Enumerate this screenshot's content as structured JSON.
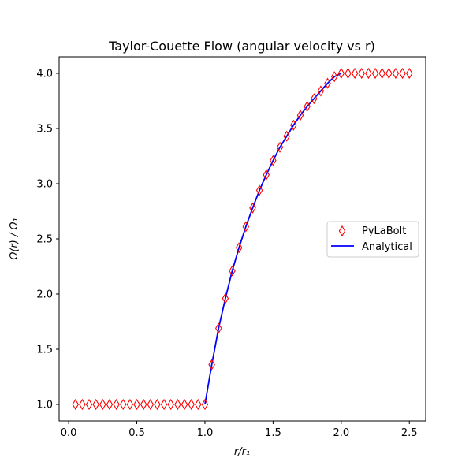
{
  "chart_data": {
    "type": "line",
    "title": "Taylor-Couette Flow (angular velocity vs r)",
    "xlabel": "r/r₁",
    "ylabel": "Ω(r) / Ω₁",
    "xlim": [
      -0.07,
      2.62
    ],
    "ylim": [
      0.85,
      4.15
    ],
    "xticks": [
      0.0,
      0.5,
      1.0,
      1.5,
      2.0,
      2.5
    ],
    "xtick_labels": [
      "0.0",
      "0.5",
      "1.0",
      "1.5",
      "2.0",
      "2.5"
    ],
    "yticks": [
      1.0,
      1.5,
      2.0,
      2.5,
      3.0,
      3.5,
      4.0
    ],
    "ytick_labels": [
      "1.0",
      "1.5",
      "2.0",
      "2.5",
      "3.0",
      "3.5",
      "4.0"
    ],
    "grid": false,
    "legend_position": "center-right",
    "series": [
      {
        "name": "PyLaBolt",
        "kind": "scatter",
        "marker": "thin-diamond",
        "color": "#ff0000",
        "x": [
          0.05,
          0.1,
          0.15,
          0.2,
          0.25,
          0.3,
          0.35,
          0.4,
          0.45,
          0.5,
          0.55,
          0.6,
          0.65,
          0.7,
          0.75,
          0.8,
          0.85,
          0.9,
          0.95,
          1.0,
          1.05,
          1.1,
          1.15,
          1.2,
          1.25,
          1.3,
          1.35,
          1.4,
          1.45,
          1.5,
          1.55,
          1.6,
          1.65,
          1.7,
          1.75,
          1.8,
          1.85,
          1.9,
          1.95,
          2.0,
          2.05,
          2.1,
          2.15,
          2.2,
          2.25,
          2.3,
          2.35,
          2.4,
          2.45,
          2.5
        ],
        "y": [
          1.0,
          1.0,
          1.0,
          1.0,
          1.0,
          1.0,
          1.0,
          1.0,
          1.0,
          1.0,
          1.0,
          1.0,
          1.0,
          1.0,
          1.0,
          1.0,
          1.0,
          1.0,
          1.0,
          1.0,
          1.36,
          1.69,
          1.96,
          2.21,
          2.42,
          2.61,
          2.78,
          2.94,
          3.08,
          3.21,
          3.33,
          3.43,
          3.53,
          3.62,
          3.7,
          3.77,
          3.84,
          3.91,
          3.97,
          4.0,
          4.0,
          4.0,
          4.0,
          4.0,
          4.0,
          4.0,
          4.0,
          4.0,
          4.0,
          4.0
        ]
      },
      {
        "name": "Analytical",
        "kind": "line",
        "color": "#0000ff",
        "x": [
          1.0,
          1.05,
          1.1,
          1.15,
          1.2,
          1.25,
          1.3,
          1.35,
          1.4,
          1.45,
          1.5,
          1.55,
          1.6,
          1.65,
          1.7,
          1.75,
          1.8,
          1.85,
          1.9,
          1.95,
          2.0
        ],
        "y": [
          1.0,
          1.36,
          1.69,
          1.96,
          2.21,
          2.42,
          2.61,
          2.78,
          2.94,
          3.08,
          3.21,
          3.33,
          3.43,
          3.53,
          3.62,
          3.7,
          3.77,
          3.84,
          3.91,
          3.97,
          4.0
        ]
      }
    ]
  }
}
